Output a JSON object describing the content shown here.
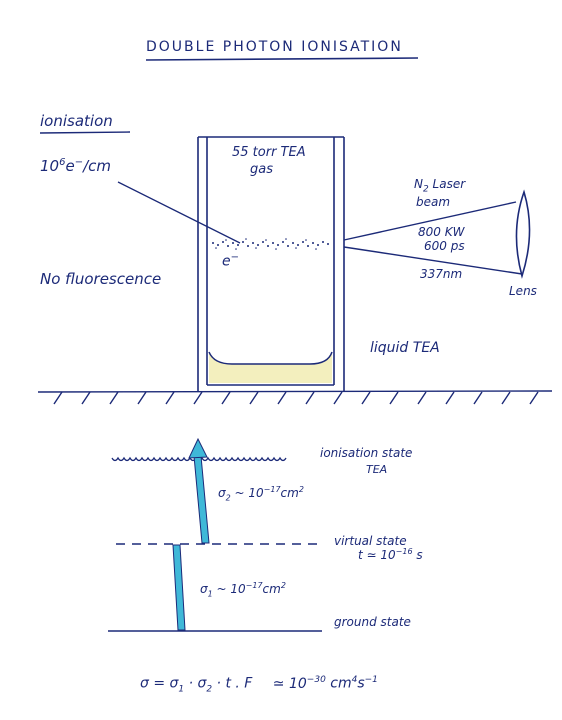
{
  "title": "DOUBLE PHOTON IONISATION",
  "left_panel": {
    "heading": "ionisation",
    "density": {
      "coeff": "10",
      "exp": "6",
      "unit": "e",
      "unit_sup": "−",
      "per": "/cm"
    },
    "no_fluorescence": "No fluorescence"
  },
  "chamber": {
    "gas_line1": "55 torr TEA",
    "gas_line2": "gas",
    "electron": "e",
    "electron_sup": "−",
    "liquid_label": "liquid TEA"
  },
  "laser": {
    "line1_main": "N",
    "line1_sub": "2",
    "line1_rest": " Laser",
    "line2": "beam",
    "power": "800 KW",
    "pulse": "600 ps",
    "wavelength": "337nm",
    "lens": "Lens"
  },
  "energy_levels": {
    "ionisation_state": "ionisation state",
    "ionisation_state_sub": "TEA",
    "virtual_state": "virtual state",
    "virtual_lifetime": {
      "prefix": "t ≃ 10",
      "exp": "−16",
      "unit": " s"
    },
    "ground_state": "ground state",
    "sigma2": {
      "symbol": "σ",
      "sub": "2",
      "rel": " ~ 10",
      "exp": "−17",
      "unit": "cm",
      "unit_exp": "2"
    },
    "sigma1": {
      "symbol": "σ",
      "sub": "1",
      "rel": " ~ 10",
      "exp": "−17",
      "unit": "cm",
      "unit_exp": "2"
    }
  },
  "formula": {
    "lhs": "σ = σ",
    "s1": "1",
    "mid": " · σ",
    "s2": "2",
    "rest": " · t . F",
    "approx": "≃ 10",
    "exp": "−30",
    "unit": " cm",
    "unit_exp": "4",
    "unit2": "s",
    "unit2_exp": "−1"
  },
  "colors": {
    "ink": "#1c2a78",
    "photon": "#3fb8d8",
    "liquid": "#f3efbe"
  }
}
